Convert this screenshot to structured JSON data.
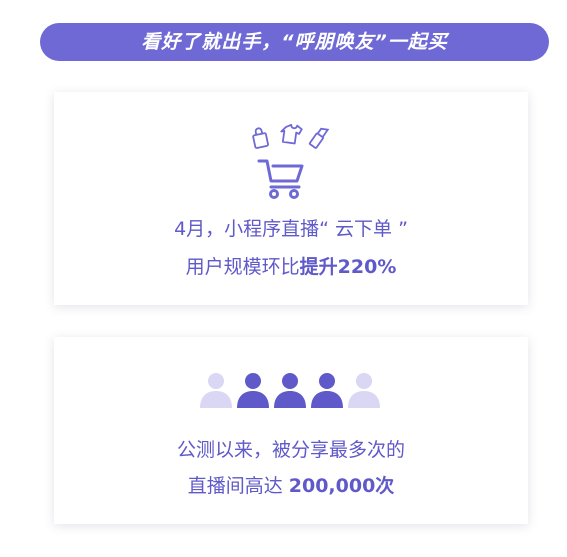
{
  "banner": {
    "text": "看好了就出手，“呼朋唤友”一起买"
  },
  "card_cart": {
    "icons": [
      "shopping-bag-icon",
      "shirt-icon",
      "lipstick-icon",
      "shopping-cart-icon"
    ],
    "line1": "4月，小程序直播“ 云下单 ”",
    "line2_prefix": "用户规模环比",
    "line2_bold": "提升220%"
  },
  "card_share": {
    "icons": [
      "person-icon"
    ],
    "line1": "公测以来，被分享最多次的",
    "line2_prefix": "直播间高达 ",
    "line2_bold": "200,000次"
  },
  "colors": {
    "accent": "#6f69d6",
    "text": "#5f59c9",
    "light_person": "#d9d7f3",
    "dark_person": "#5f59c9"
  }
}
